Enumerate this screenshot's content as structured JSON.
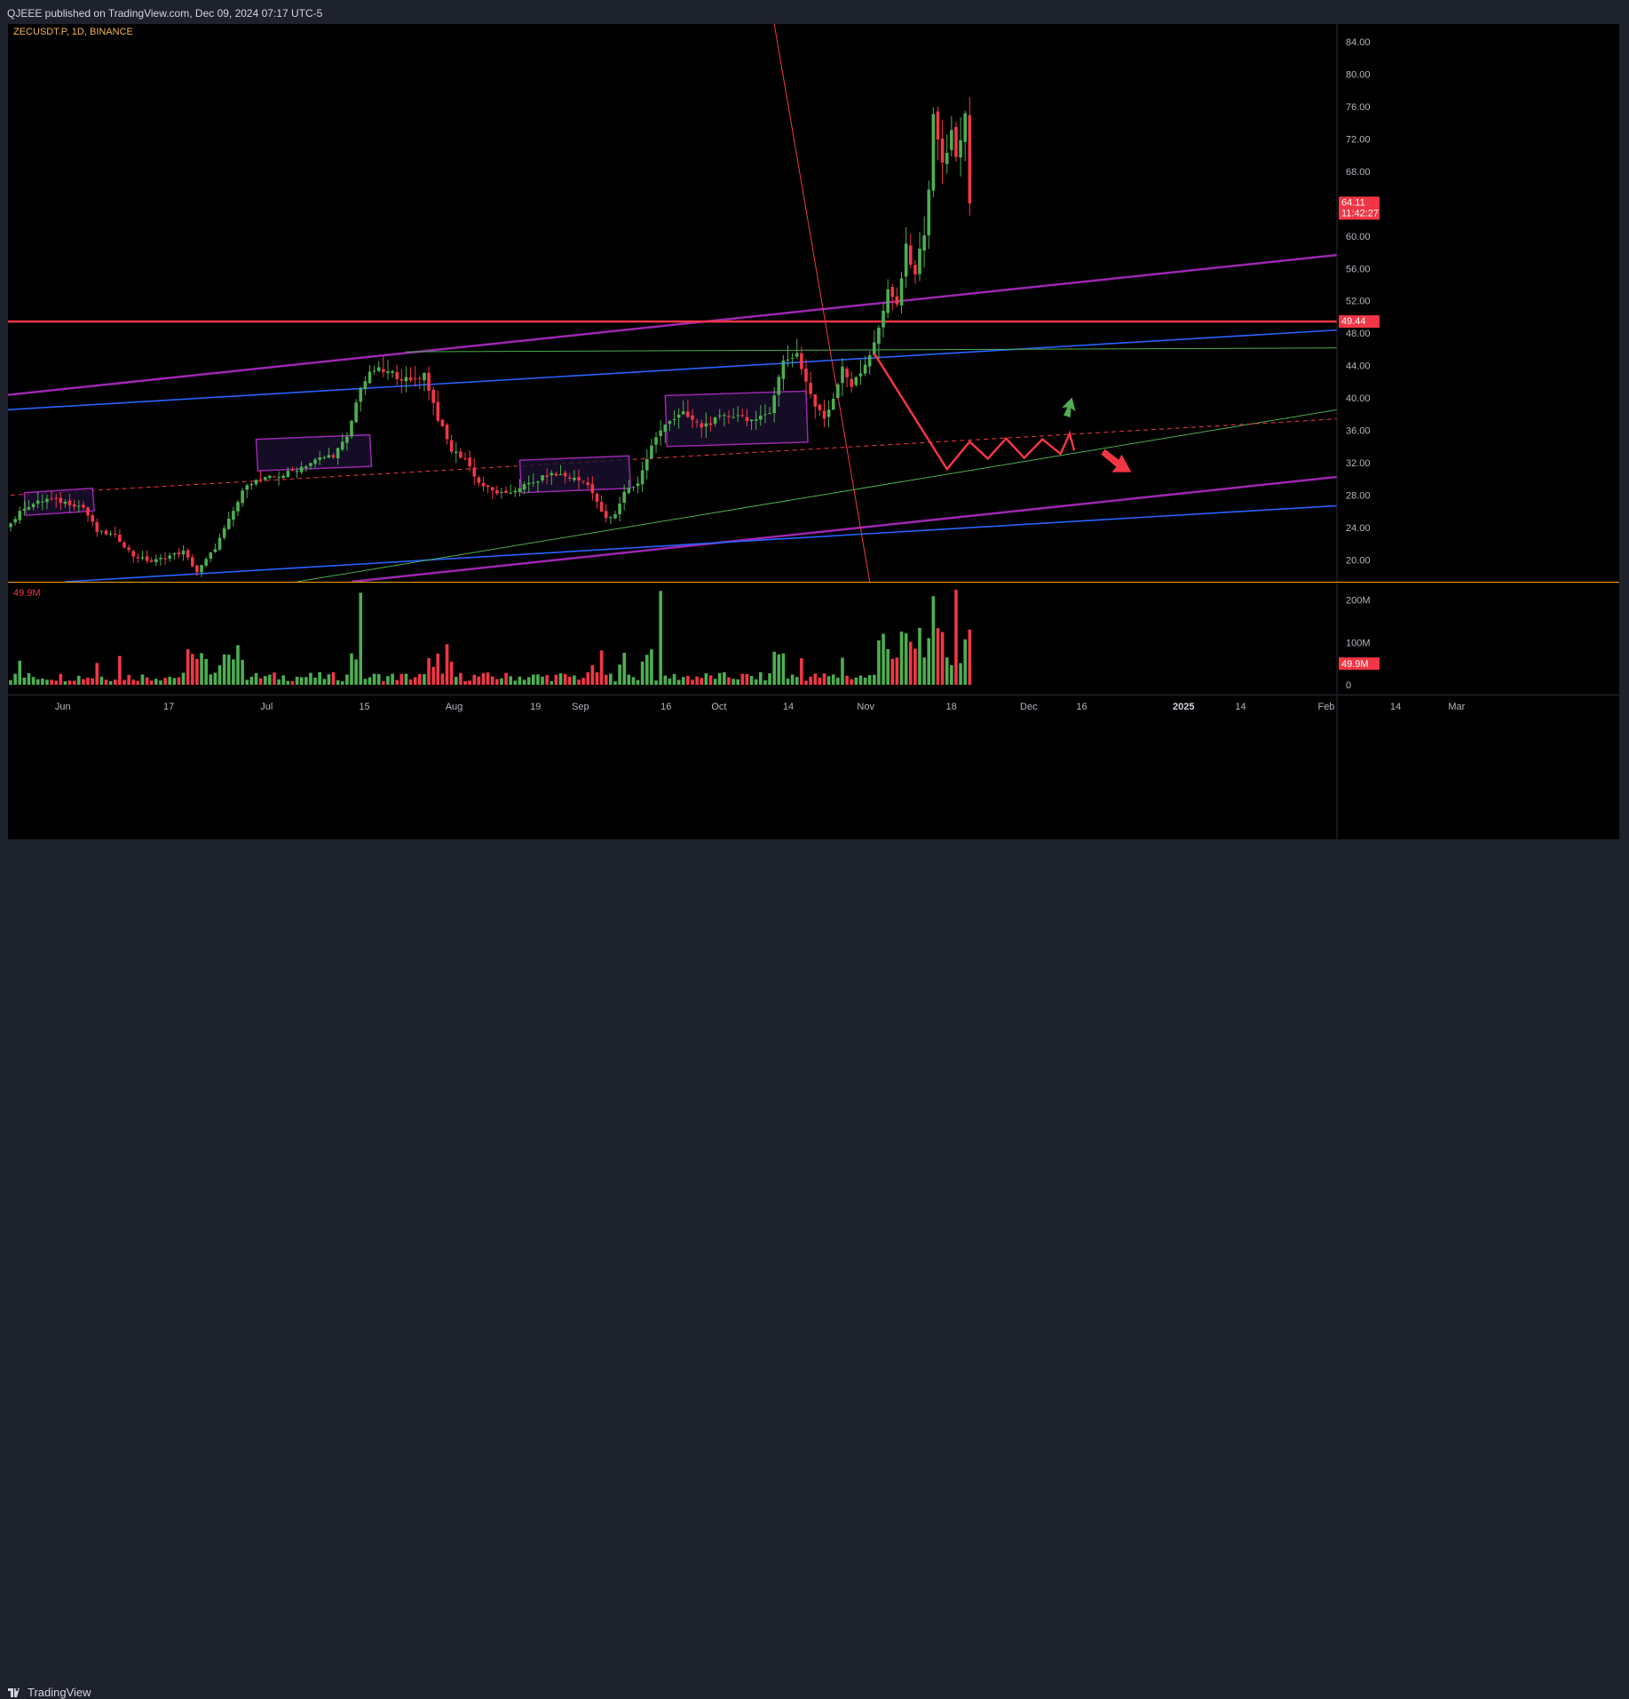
{
  "header": {
    "publisher_line": "QJEEE published on TradingView.com, Dec 09, 2024 07:17 UTC-5"
  },
  "footer": {
    "brand": "TradingView"
  },
  "colors": {
    "background": "#000000",
    "up": "#4caf50",
    "down": "#f23645",
    "purple_line": "#9c27b0",
    "blue_line": "#2962ff",
    "red_level": "#f23645",
    "green_trend": "#4caf50",
    "box_border": "#9c27b0",
    "box_fill": "#1a1030"
  },
  "chart_data": {
    "type": "candlestick",
    "symbol_label": "ZECUSDT.P, 1D, BINANCE",
    "price_axis": {
      "ticks": [
        "84.00",
        "80.00",
        "76.00",
        "72.00",
        "68.00",
        "64.00",
        "60.00",
        "56.00",
        "52.00",
        "48.00",
        "44.00",
        "40.00",
        "36.00",
        "32.00",
        "28.00",
        "24.00",
        "20.00"
      ],
      "ylim": [
        17.3,
        86.2
      ]
    },
    "x_axis_ticks": [
      "Jun",
      "17",
      "Jul",
      "15",
      "Aug",
      "19",
      "Sep",
      "16",
      "Oct",
      "14",
      "Nov",
      "18",
      "Dec",
      "16",
      "2025",
      "14",
      "Feb",
      "14",
      "Mar"
    ],
    "x_axis_ticks_bold": [
      "2025"
    ],
    "last_price": {
      "value": "64.11",
      "countdown": "11:42:27"
    },
    "horizontal_level": {
      "value": "49.44"
    },
    "volume": {
      "label": "49.9M",
      "axis_ticks": [
        "200M",
        "100M",
        "0"
      ],
      "last_value": "49.9M",
      "ylim": [
        0,
        235
      ]
    },
    "candle_anchors": [
      [
        0,
        24.5
      ],
      [
        3,
        26.5
      ],
      [
        8,
        27.5
      ],
      [
        13,
        27.0
      ],
      [
        16,
        26.5
      ],
      [
        19,
        23.5
      ],
      [
        23,
        23.0
      ],
      [
        27,
        20.5
      ],
      [
        31,
        19.8
      ],
      [
        35,
        20.5
      ],
      [
        38,
        21.0
      ],
      [
        41,
        18.5
      ],
      [
        45,
        21.5
      ],
      [
        49,
        26.0
      ],
      [
        52,
        29.5
      ],
      [
        56,
        30.0
      ],
      [
        60,
        30.5
      ],
      [
        64,
        31.5
      ],
      [
        68,
        32.5
      ],
      [
        71,
        33.0
      ],
      [
        74,
        35.0
      ],
      [
        77,
        41.5
      ],
      [
        80,
        43.5
      ],
      [
        84,
        43.0
      ],
      [
        88,
        42.0
      ],
      [
        91,
        43.0
      ],
      [
        94,
        37.5
      ],
      [
        97,
        33.5
      ],
      [
        100,
        32.5
      ],
      [
        103,
        29.5
      ],
      [
        106,
        28.5
      ],
      [
        109,
        28.0
      ],
      [
        112,
        29.0
      ],
      [
        115,
        29.5
      ],
      [
        118,
        30.5
      ],
      [
        121,
        30.5
      ],
      [
        124,
        30.0
      ],
      [
        127,
        29.5
      ],
      [
        129,
        27.0
      ],
      [
        131,
        25.0
      ],
      [
        133,
        25.5
      ],
      [
        135,
        28.5
      ],
      [
        138,
        29.5
      ],
      [
        141,
        34.0
      ],
      [
        144,
        37.0
      ],
      [
        148,
        38.0
      ],
      [
        152,
        36.5
      ],
      [
        156,
        37.5
      ],
      [
        160,
        38.0
      ],
      [
        164,
        37.0
      ],
      [
        167,
        38.5
      ],
      [
        170,
        44.5
      ],
      [
        173,
        45.5
      ],
      [
        175,
        42.0
      ],
      [
        177,
        39.0
      ],
      [
        179,
        37.5
      ],
      [
        181,
        40.0
      ],
      [
        183,
        44.0
      ],
      [
        185,
        41.5
      ],
      [
        187,
        43.0
      ],
      [
        189,
        45.5
      ],
      [
        191,
        48.5
      ],
      [
        193,
        53.0
      ],
      [
        195,
        51.5
      ],
      [
        197,
        58.5
      ],
      [
        199,
        55.5
      ],
      [
        201,
        60.5
      ],
      [
        202,
        66.0
      ],
      [
        203,
        74.5
      ],
      [
        204,
        72.0
      ],
      [
        205,
        69.0
      ],
      [
        206,
        70.0
      ],
      [
        207,
        73.5
      ],
      [
        208,
        70.0
      ],
      [
        209,
        71.5
      ],
      [
        210,
        74.5
      ],
      [
        211,
        64.11
      ]
    ],
    "annotations": [
      {
        "type": "trendline",
        "color": "#9c27b0",
        "from": [
          -2,
          40.3
        ],
        "to": [
          301,
          58.2
        ]
      },
      {
        "type": "trendline",
        "color": "#9c27b0",
        "from": [
          75,
          17.3
        ],
        "to": [
          301,
          30.8
        ]
      },
      {
        "type": "trendline",
        "color": "#2962ff",
        "from": [
          -2,
          38.5
        ],
        "to": [
          301,
          48.7
        ]
      },
      {
        "type": "trendline",
        "color": "#2962ff",
        "from": [
          12,
          17.3
        ],
        "to": [
          301,
          27.0
        ]
      },
      {
        "type": "hline",
        "color": "#f23645",
        "value": 49.44
      },
      {
        "type": "trendline",
        "color": "#4caf50",
        "from": [
          63,
          17.3
        ],
        "to": [
          301,
          39.4
        ]
      },
      {
        "type": "trendline",
        "color": "#4caf50",
        "from": [
          87,
          45.7
        ],
        "to": [
          301,
          46.2
        ]
      },
      {
        "type": "trendline_dashed",
        "color": "#f23645",
        "from": [
          0,
          28.0
        ],
        "to": [
          301,
          37.7
        ]
      },
      {
        "type": "trendline",
        "color": "#f23645",
        "from": [
          168,
          86.2
        ],
        "to": [
          189,
          17.3
        ]
      },
      {
        "type": "box",
        "from": [
          3,
          28.3
        ],
        "to": [
          18,
          25.5
        ]
      },
      {
        "type": "box",
        "from": [
          54,
          34.9
        ],
        "to": [
          79,
          31.0
        ]
      },
      {
        "type": "box",
        "from": [
          112,
          32.3
        ],
        "to": [
          136,
          28.3
        ]
      },
      {
        "type": "box",
        "from": [
          144,
          40.3
        ],
        "to": [
          175,
          34.0
        ]
      },
      {
        "type": "path_projection",
        "color": "#f23645",
        "points": [
          [
            190,
            45.5
          ],
          [
            206,
            31.2
          ],
          [
            211,
            34.6
          ],
          [
            215,
            32.5
          ],
          [
            219,
            35.0
          ],
          [
            223,
            32.6
          ],
          [
            227,
            34.9
          ],
          [
            231,
            33.1
          ],
          [
            233,
            35.6
          ],
          [
            234,
            33.5
          ]
        ]
      },
      {
        "type": "arrow_up",
        "color": "#4caf50",
        "at": [
          233,
          39.0
        ]
      },
      {
        "type": "arrow_down",
        "color": "#f23645",
        "at": [
          245,
          31.5
        ]
      }
    ]
  }
}
